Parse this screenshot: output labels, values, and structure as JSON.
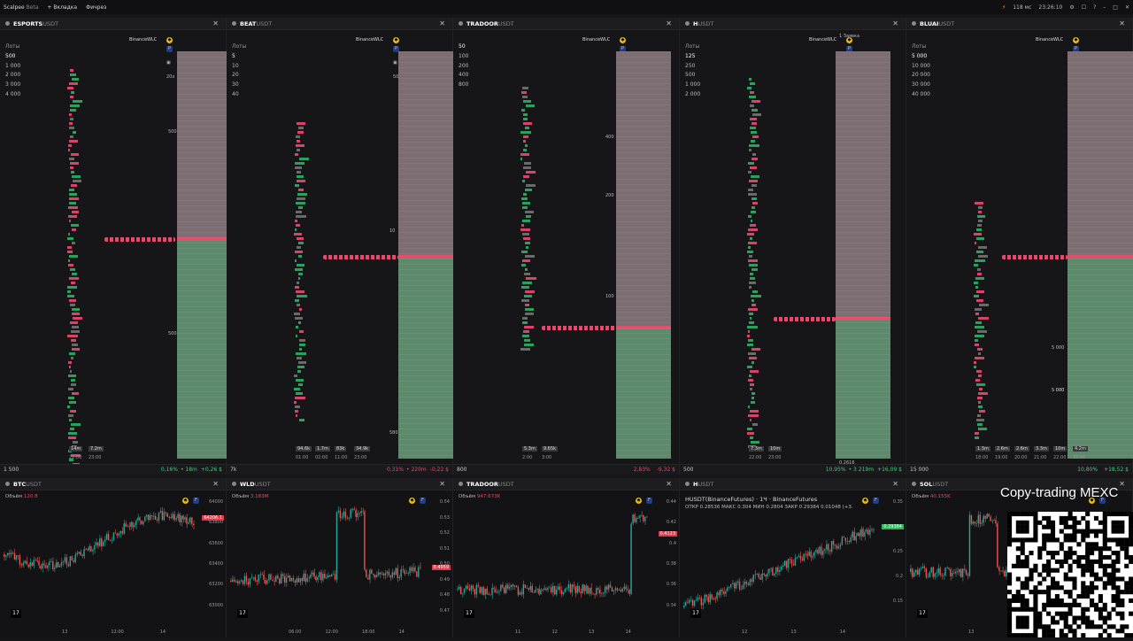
{
  "app": {
    "name": "Scalpee",
    "badge": "Beta",
    "menu": [
      "+ Вкладка",
      "Фичрез"
    ],
    "latency": "118 мс",
    "clock": "23:26:10"
  },
  "colors": {
    "bg": "#151517",
    "ask": "#7c6e72",
    "bid": "#5e8a6c",
    "red": "#e24e6b",
    "green": "#2aa25e"
  },
  "panels": [
    {
      "base": "ESPORTS",
      "quote": "USDT",
      "lots_label": "Лоты",
      "lots": [
        "500",
        "1 000",
        "2 000",
        "3 000",
        "4 000"
      ],
      "exchange": "BinanceWLC",
      "zoom": "20x",
      "footer_left": "1 500",
      "footer_pct": "0,16%",
      "footer_extra": "• 18m",
      "footer_right": "+0,26 $",
      "dir": "pos",
      "times": [
        "22:00",
        "23:00"
      ],
      "chips": [
        "14m",
        "7.2m"
      ],
      "levels": [
        "500",
        "500"
      ]
    },
    {
      "base": "BEAT",
      "quote": "USDT",
      "lots_label": "Лоты",
      "lots": [
        "5",
        "10",
        "20",
        "30",
        "40"
      ],
      "exchange": "BinanceWLC",
      "zoom": "50x",
      "footer_left": "7k",
      "footer_pct": "0,31%",
      "footer_extra": "• 220m",
      "footer_right": "-0,22 $",
      "dir": "neg",
      "times": [
        "01:00",
        "02:00",
        "11:00",
        "23:00"
      ],
      "chips": [
        "94.6k",
        "1.7m",
        "83k",
        "34.9k"
      ],
      "levels": [
        "10",
        "580"
      ]
    },
    {
      "base": "TRADOOR",
      "quote": "USDT",
      "lots_label": "",
      "lots": [
        "50",
        "100",
        "200",
        "400",
        "800"
      ],
      "exchange": "BinanceWLC",
      "zoom": "5x",
      "footer_left": "800",
      "footer_pct": "2,83%",
      "footer_extra": "",
      "footer_right": "-9,32 $",
      "dir": "neg",
      "times": [
        "2:00",
        "3:00"
      ],
      "chips": [
        "5.3m",
        "9.65k"
      ],
      "levels": [
        "400",
        "200",
        "100"
      ]
    },
    {
      "base": "H",
      "quote": "USDT",
      "lots_label": "Лоты",
      "lots": [
        "125",
        "250",
        "500",
        "1 000",
        "2 000"
      ],
      "exchange": "BinanceWLC",
      "zoom": "20x",
      "footer_left": "500",
      "footer_pct": "10,95%",
      "footer_extra": "• 3 219m",
      "footer_right": "+16,09 $",
      "dir": "pos",
      "times": [
        "22:00",
        "23:00"
      ],
      "chips": [
        "7.3m",
        "10m"
      ],
      "levels": [
        "1 Заявка",
        "0.2616"
      ]
    },
    {
      "base": "BLUAI",
      "quote": "USDT",
      "lots_label": "Лоты",
      "lots": [
        "5 000",
        "10 000",
        "20 000",
        "30 000",
        "40 000"
      ],
      "exchange": "BinanceWLC",
      "zoom": "20x",
      "footer_left": "15 000",
      "footer_pct": "10,80%",
      "footer_extra": "",
      "footer_right": "+18,52 $",
      "dir": "pos",
      "times": [
        "18:00",
        "19:00",
        "20:00",
        "21:00",
        "22:00",
        "23:00"
      ],
      "chips": [
        "1.3m",
        "2.6m",
        "2.6m",
        "3.3m",
        "10m",
        "4.2m"
      ],
      "levels": [
        "5 000",
        "5 000",
        "5 000"
      ]
    }
  ],
  "charts": [
    {
      "base": "BTC",
      "quote": "USDT",
      "title": "",
      "vol_label": "Объём",
      "vol": "120.8",
      "price": "64206.1",
      "price_dir": "neg",
      "yticks": [
        "64000",
        "63800",
        "63600",
        "63400",
        "63200",
        "63000"
      ],
      "xticks": [
        "13",
        "12:00",
        "14"
      ]
    },
    {
      "base": "WLD",
      "quote": "USDT",
      "title": "",
      "vol_label": "Объём",
      "vol": "3.183M",
      "price": "0.4959",
      "price_dir": "neg",
      "yticks": [
        "0.54",
        "0.53",
        "0.52",
        "0.51",
        "0.50",
        "0.49",
        "0.48",
        "0.47"
      ],
      "xticks": [
        "06:00",
        "12:00",
        "18:00",
        "14"
      ]
    },
    {
      "base": "TRADOOR",
      "quote": "USDT",
      "title": "",
      "vol_label": "Объём",
      "vol": "947.673K",
      "price": "0.4123",
      "price_dir": "neg",
      "yticks": [
        "0.44",
        "0.42",
        "0.4",
        "0.38",
        "0.36",
        "0.34"
      ],
      "xticks": [
        "11",
        "12",
        "13",
        "14"
      ]
    },
    {
      "base": "H",
      "quote": "USDT",
      "title": "HUSDT(BinanceFutures) · 1Ч · BinanceFutures",
      "ohlc": "ОТКР 0.28536 МАКС 0.304 МИН 0.2804 ЗАКР 0.29384 0.01048 (+3.",
      "vol_label": "",
      "vol": "",
      "price": "0.29384",
      "price_dir": "pos",
      "yticks": [
        "0.35",
        "0.3",
        "0.25",
        "0.2",
        "0.15"
      ],
      "xticks": [
        "12",
        "13",
        "14"
      ]
    },
    {
      "base": "SOL",
      "quote": "USDT",
      "title": "",
      "vol_label": "Объём",
      "vol": "40.155K",
      "price": "",
      "price_dir": "neg",
      "yticks": [],
      "xticks": [
        "13"
      ]
    }
  ],
  "overlay": {
    "text": "Copy-trading MEXC"
  }
}
